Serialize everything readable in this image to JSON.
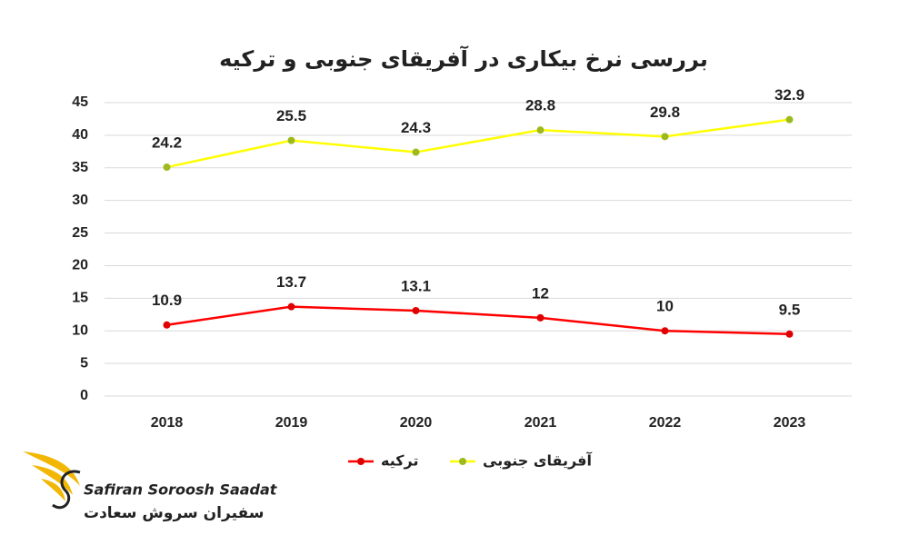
{
  "chart_data": {
    "type": "line",
    "stacked": true,
    "title": "بررسی نرخ بیکاری در آفریقای جنوبی و ترکیه",
    "categories": [
      "2018",
      "2019",
      "2020",
      "2021",
      "2022",
      "2023"
    ],
    "series": [
      {
        "name": "ترکیه",
        "color": "#ff0000",
        "marker_color": "#e00000",
        "values": [
          10.9,
          13.7,
          13.1,
          12,
          10,
          9.5
        ]
      },
      {
        "name": "آفریقای جنوبی",
        "color": "#ffff00",
        "marker_color": "#9cba1e",
        "values": [
          24.2,
          25.5,
          24.3,
          28.8,
          29.8,
          32.9
        ]
      }
    ],
    "ylim": [
      0,
      45
    ],
    "yticks": [
      0,
      5,
      10,
      15,
      20,
      25,
      30,
      35,
      40,
      45
    ],
    "grid": true,
    "legend": "bottom"
  },
  "branding": {
    "latin": "Safiran Soroosh Saadat",
    "persian": "سفیران سروش سعادت"
  }
}
